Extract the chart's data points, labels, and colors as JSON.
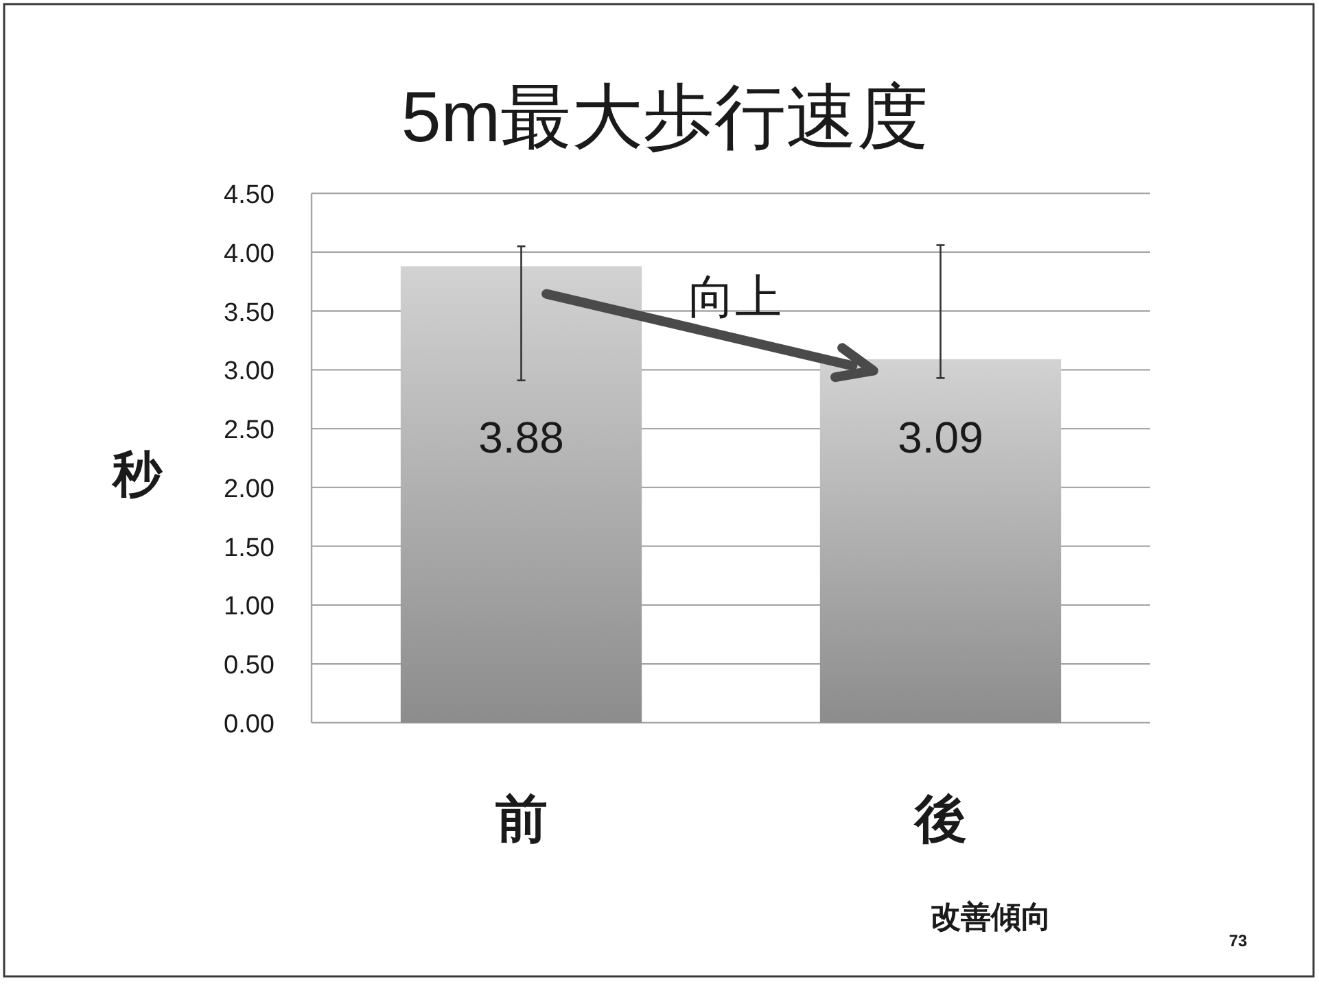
{
  "chart_data": {
    "type": "bar",
    "title": "5m最大歩行速度",
    "ylabel": "秒",
    "categories": [
      "前",
      "後"
    ],
    "values": [
      3.88,
      3.09
    ],
    "color": "#b4b4b4",
    "errors": [
      [
        2.91,
        4.05
      ],
      [
        2.93,
        4.06
      ]
    ],
    "ylim": [
      0,
      4.5
    ],
    "yticks": [
      {
        "value": 0,
        "label": "0.00"
      },
      {
        "value": 0.5,
        "label": "0.50"
      },
      {
        "value": 1,
        "label": "1.00"
      },
      {
        "value": 1.5,
        "label": "1.50"
      },
      {
        "value": 2,
        "label": "2.00"
      },
      {
        "value": 2.5,
        "label": "2.50"
      },
      {
        "value": 3,
        "label": "3.00"
      },
      {
        "value": 3.5,
        "label": "3.50"
      },
      {
        "value": 4,
        "label": "4.00"
      },
      {
        "value": 4.5,
        "label": "4.50"
      }
    ],
    "grid": "y",
    "data_labels": true,
    "annotations": [
      "向上",
      "改善傾向",
      "73"
    ]
  }
}
